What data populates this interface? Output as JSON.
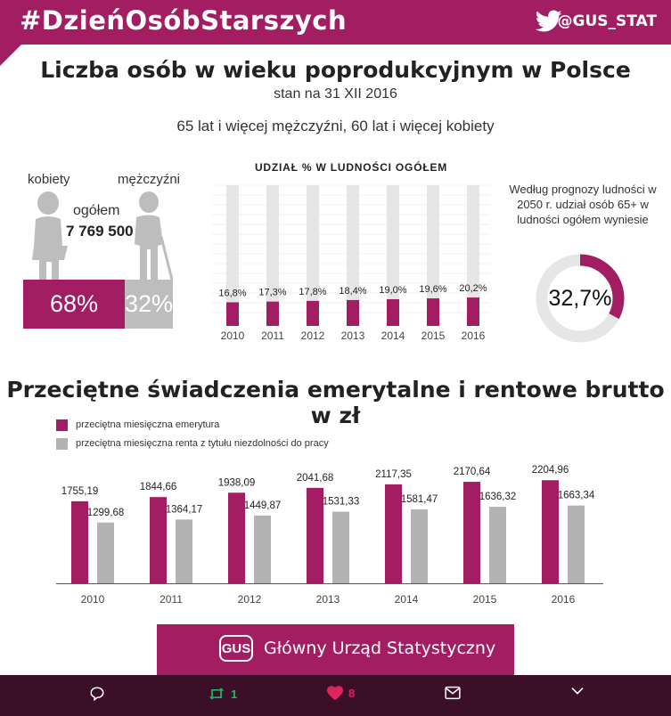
{
  "header": {
    "hashtag": "#DzieńOsóbStarszych",
    "handle": "@GUS_STAT",
    "brand_color": "#a31d63"
  },
  "title": "Liczba osób w wieku poprodukcyjnym w Polsce",
  "subtitle": "stan na 31 XII 2016",
  "note": "65 lat i więcej mężczyźni, 60 lat i więcej kobiety",
  "people": {
    "women_label": "kobiety",
    "men_label": "mężczyźni",
    "total_label": "ogółem",
    "total_value": "7 769 500",
    "women_pct": "68%",
    "men_pct": "32%"
  },
  "prognosis": {
    "text": "Według prognozy ludności w 2050 r. udział osób 65+ w ludności ogółem wyniesie",
    "value_label": "32,7%",
    "value": 32.7
  },
  "chart_data": [
    {
      "type": "bar",
      "title": "UDZIAŁ % W LUDNOŚCI OGÓŁEM",
      "categories": [
        "2010",
        "2011",
        "2012",
        "2013",
        "2014",
        "2015",
        "2016"
      ],
      "values": [
        16.8,
        17.3,
        17.8,
        18.4,
        19.0,
        19.6,
        20.2
      ],
      "value_labels": [
        "16,8%",
        "17,3%",
        "17,8%",
        "18,4%",
        "19,0%",
        "19,6%",
        "20,2%"
      ],
      "ylim": [
        0,
        100
      ],
      "colors": {
        "bar": "#a31d63",
        "track": "#e6e6e6"
      }
    },
    {
      "type": "bar",
      "title": "Przeciętne świadczenia emerytalne i rentowe brutto w zł",
      "categories": [
        "2010",
        "2011",
        "2012",
        "2013",
        "2014",
        "2015",
        "2016"
      ],
      "series": [
        {
          "name": "przeciętna miesięczna emerytura",
          "values": [
            1755.19,
            1844.66,
            1938.09,
            2041.68,
            2117.35,
            2170.64,
            2204.96
          ],
          "value_labels": [
            "1755,19",
            "1844,66",
            "1938,09",
            "2041,68",
            "2117,35",
            "2170,64",
            "2204,96"
          ],
          "color": "#a31d63"
        },
        {
          "name": "przeciętna miesięczna renta z tytułu niezdolności do pracy",
          "values": [
            1299.68,
            1364.17,
            1449.87,
            1531.33,
            1581.47,
            1636.32,
            1663.34
          ],
          "value_labels": [
            "1299,68",
            "1364,17",
            "1449,87",
            "1531,33",
            "1581,47",
            "1636,32",
            "1663,34"
          ],
          "color": "#b3b3b3"
        }
      ],
      "legend": "top-left",
      "grid": false
    }
  ],
  "footer": {
    "logo_text": "GUS",
    "org_name": "Główny Urząd Statystyczny"
  },
  "actions": {
    "retweets": "1",
    "likes": "8",
    "retweet_color": "#17bf63",
    "like_color": "#e0245e"
  }
}
